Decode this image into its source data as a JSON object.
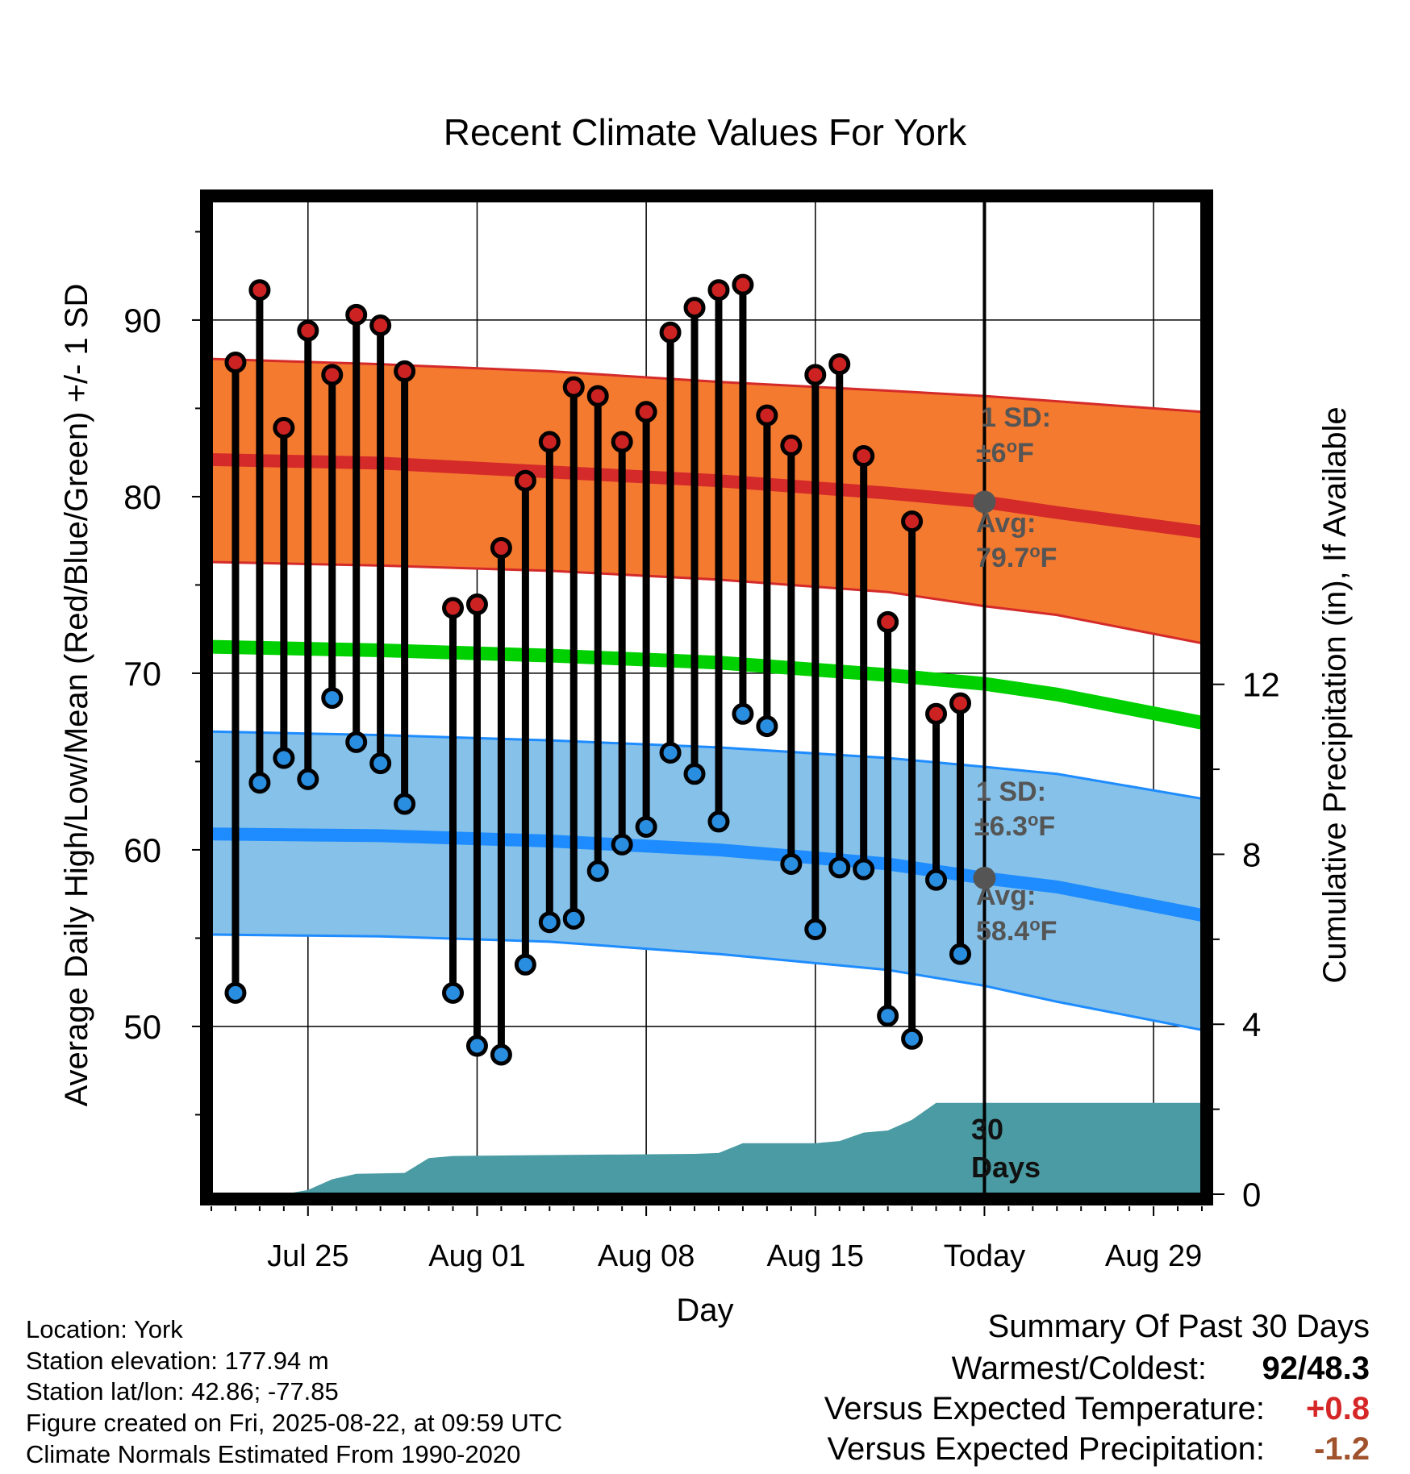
{
  "chart_data": {
    "type": "line",
    "title": "Recent Climate Values For York",
    "xlabel": "Day",
    "ylabel": "Average Daily High/Low/Mean (Red/Blue/Green) +/- 1 SD",
    "y2label": "Cumulative Precipitation (in), If Available",
    "ylim": [
      40.5,
      96.8
    ],
    "y2lim": [
      0,
      23.4
    ],
    "y_ticks": [
      50,
      60,
      70,
      80,
      90
    ],
    "y2_ticks": [
      0,
      4,
      8,
      12
    ],
    "x_start": "2025-07-21",
    "x_end": "2025-08-31",
    "x_ticks": [
      {
        "date": "2025-07-25",
        "label": "Jul 25"
      },
      {
        "date": "2025-08-01",
        "label": "Aug 01"
      },
      {
        "date": "2025-08-08",
        "label": "Aug 08"
      },
      {
        "date": "2025-08-15",
        "label": "Aug 15"
      },
      {
        "date": "2025-08-22",
        "label": "Today"
      },
      {
        "date": "2025-08-29",
        "label": "Aug 29"
      }
    ],
    "today": "2025-08-22",
    "grid": true,
    "colors": {
      "high_band": "#f47a30",
      "high_line": "#d42a2a",
      "low_band": "#85c1e9",
      "low_line": "#1e8cff",
      "mean_line": "#00d000",
      "precip": "#4a9ba3",
      "high_dot": "#cc2222",
      "low_dot": "#2a8ee0",
      "annotation": "#555555",
      "positive": "#d62728",
      "negative": "#a0522d"
    },
    "normals": {
      "dates": [
        "2025-07-21",
        "2025-07-28",
        "2025-08-04",
        "2025-08-11",
        "2025-08-18",
        "2025-08-22",
        "2025-08-25",
        "2025-08-31"
      ],
      "high_avg": [
        82.1,
        81.9,
        81.4,
        80.9,
        80.2,
        79.7,
        79.1,
        78.0
      ],
      "high_upper": [
        87.8,
        87.5,
        87.1,
        86.5,
        86.0,
        85.7,
        85.4,
        84.8
      ],
      "high_lower": [
        76.3,
        76.1,
        75.8,
        75.3,
        74.6,
        73.8,
        73.3,
        71.7
      ],
      "mean_avg": [
        71.5,
        71.3,
        71.0,
        70.6,
        69.9,
        69.4,
        68.8,
        67.2
      ],
      "low_avg": [
        60.9,
        60.8,
        60.5,
        60.0,
        59.2,
        58.4,
        57.9,
        56.3
      ],
      "low_upper": [
        66.7,
        66.5,
        66.2,
        65.8,
        65.2,
        64.7,
        64.3,
        62.9
      ],
      "low_lower": [
        55.2,
        55.1,
        54.8,
        54.1,
        53.2,
        52.3,
        51.4,
        49.8
      ]
    },
    "series": [
      {
        "name": "High",
        "dates": [
          "2025-07-22",
          "2025-07-23",
          "2025-07-24",
          "2025-07-25",
          "2025-07-26",
          "2025-07-27",
          "2025-07-28",
          "2025-07-29",
          "2025-07-31",
          "2025-08-01",
          "2025-08-02",
          "2025-08-03",
          "2025-08-04",
          "2025-08-05",
          "2025-08-06",
          "2025-08-07",
          "2025-08-08",
          "2025-08-09",
          "2025-08-10",
          "2025-08-11",
          "2025-08-12",
          "2025-08-13",
          "2025-08-14",
          "2025-08-15",
          "2025-08-16",
          "2025-08-17",
          "2025-08-18",
          "2025-08-19",
          "2025-08-20",
          "2025-08-21"
        ],
        "values": [
          87.6,
          91.7,
          83.9,
          89.4,
          86.9,
          90.3,
          89.7,
          87.1,
          73.7,
          73.9,
          77.1,
          80.9,
          83.1,
          86.2,
          85.7,
          83.1,
          84.8,
          89.3,
          90.7,
          91.7,
          92.0,
          84.6,
          82.9,
          86.9,
          87.5,
          82.3,
          72.9,
          78.6,
          67.7,
          68.3
        ]
      },
      {
        "name": "Low",
        "dates": [
          "2025-07-22",
          "2025-07-23",
          "2025-07-24",
          "2025-07-25",
          "2025-07-26",
          "2025-07-27",
          "2025-07-28",
          "2025-07-29",
          "2025-07-31",
          "2025-08-01",
          "2025-08-02",
          "2025-08-03",
          "2025-08-04",
          "2025-08-05",
          "2025-08-06",
          "2025-08-07",
          "2025-08-08",
          "2025-08-09",
          "2025-08-10",
          "2025-08-11",
          "2025-08-12",
          "2025-08-13",
          "2025-08-14",
          "2025-08-15",
          "2025-08-16",
          "2025-08-17",
          "2025-08-18",
          "2025-08-19",
          "2025-08-20",
          "2025-08-21"
        ],
        "values": [
          51.9,
          63.8,
          65.2,
          64.0,
          68.6,
          66.1,
          64.9,
          62.6,
          51.9,
          48.9,
          48.4,
          53.5,
          55.9,
          56.1,
          58.8,
          60.3,
          61.3,
          65.5,
          64.3,
          61.6,
          67.7,
          67.0,
          59.2,
          55.5,
          59.0,
          58.9,
          50.6,
          49.3,
          58.3,
          54.1
        ]
      }
    ],
    "precip_cumulative": {
      "dates": [
        "2025-07-24",
        "2025-07-25",
        "2025-07-26",
        "2025-07-27",
        "2025-07-29",
        "2025-07-30",
        "2025-07-31",
        "2025-08-10",
        "2025-08-11",
        "2025-08-12",
        "2025-08-15",
        "2025-08-16",
        "2025-08-17",
        "2025-08-18",
        "2025-08-19",
        "2025-08-20",
        "2025-08-31"
      ],
      "values": [
        0,
        0.1,
        0.35,
        0.48,
        0.5,
        0.85,
        0.9,
        0.95,
        0.97,
        1.2,
        1.2,
        1.25,
        1.45,
        1.5,
        1.75,
        2.15,
        2.15
      ]
    },
    "annotations": {
      "high_sd_label": "1 SD:",
      "high_sd_value": "±6",
      "high_avg_label": "Avg:",
      "high_avg_value": "79.7",
      "low_sd_label": "1 SD:",
      "low_sd_value": "±6.3",
      "low_avg_label": "Avg:",
      "low_avg_value": "58.4",
      "unit_degree": "o",
      "unit_f": "F",
      "days_count": "30",
      "days_word": "Days"
    }
  },
  "info": {
    "location": "Location: York",
    "elevation": "Station elevation: 177.94 m",
    "latlon": "Station lat/lon: 42.86; -77.85",
    "created": "Figure created on Fri, 2025-08-22, at 09:59 UTC",
    "normals": "Climate Normals Estimated From 1990-2020"
  },
  "summary": {
    "title": "Summary Of Past 30 Days",
    "warmest_label": "Warmest/Coldest:",
    "warmest_value": "92",
    "coldest_value": "48.3",
    "temp_label": "Versus Expected Temperature:",
    "temp_value": "+0.8",
    "precip_label": "Versus Expected Precipitation:",
    "precip_value": "-1.2"
  }
}
